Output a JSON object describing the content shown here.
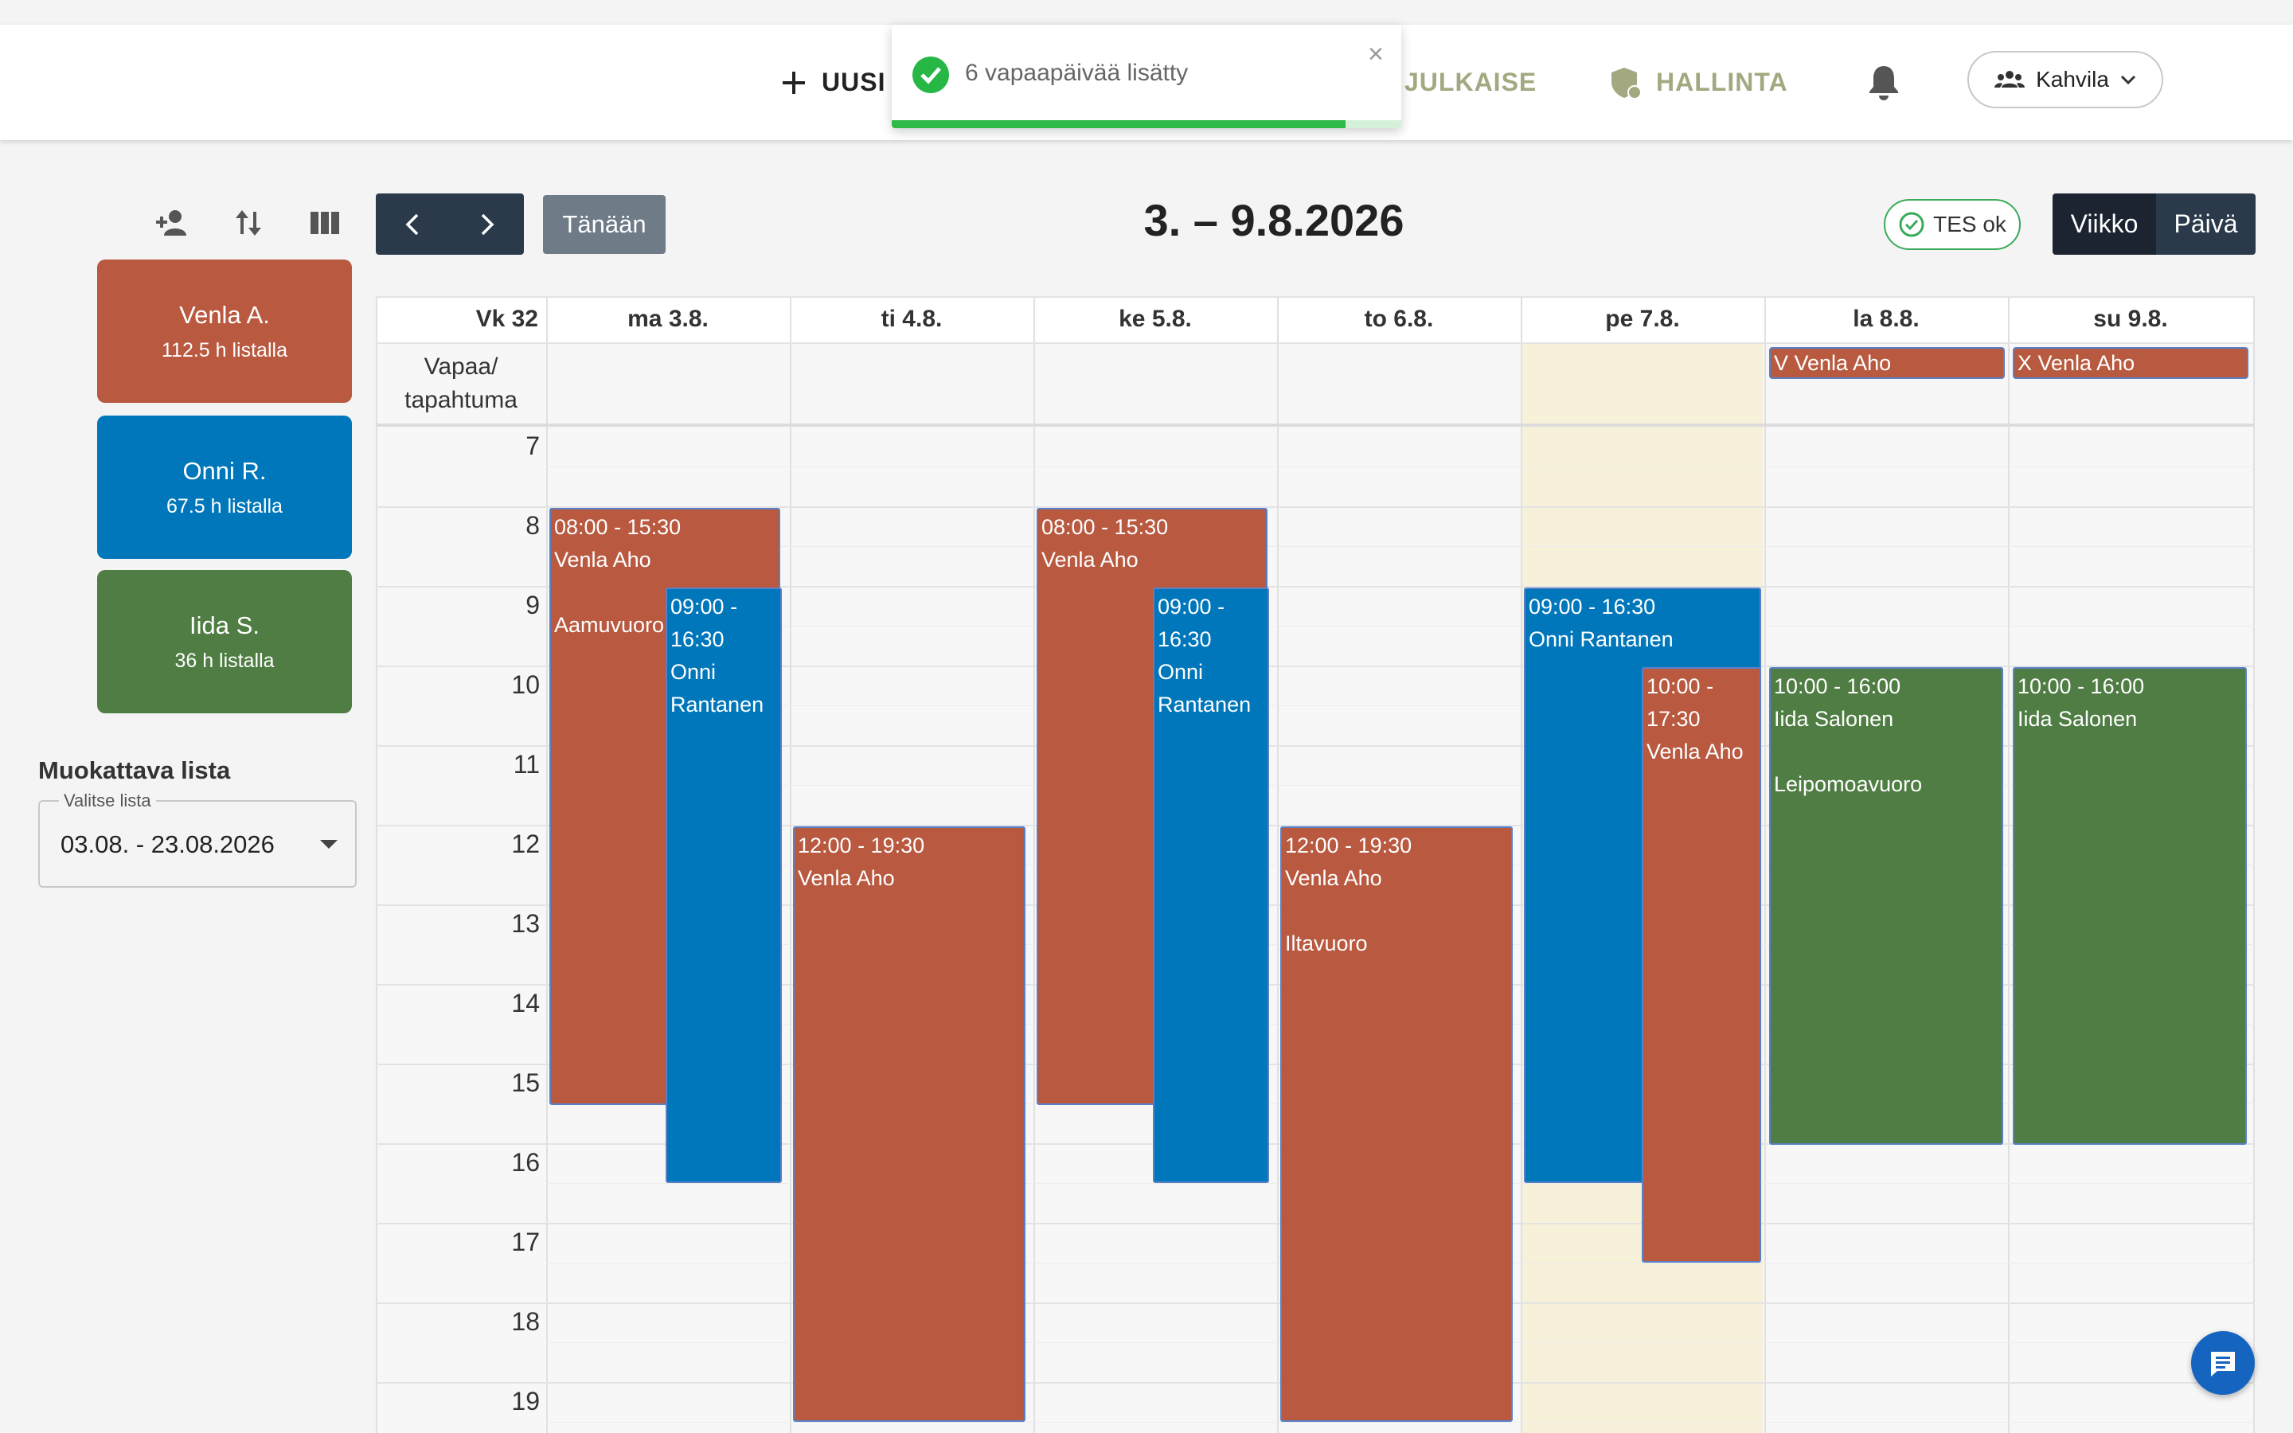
{
  "header": {
    "nav": [
      {
        "label": "UUSI",
        "icon": "plus-icon"
      },
      {
        "label": "JULKAISE"
      },
      {
        "label": "HALLINTA",
        "icon": "shield-icon"
      }
    ],
    "company": "Kahvila"
  },
  "toast": {
    "message": "6 vapaapäivää lisätty",
    "close": "×"
  },
  "employees": [
    {
      "name": "Venla A.",
      "hours": "112.5 h listalla",
      "color": "#b85940"
    },
    {
      "name": "Onni R.",
      "hours": "67.5 h listalla",
      "color": "#0077bb"
    },
    {
      "name": "Iida S.",
      "hours": "36 h listalla",
      "color": "#4f7d43"
    }
  ],
  "list": {
    "title": "Muokattava lista",
    "legend": "Valitse lista",
    "value": "03.08. - 23.08.2026"
  },
  "toolbar": {
    "today": "Tänään",
    "week_title": "3. – 9.8.2026",
    "tes": "TES ok",
    "view_week": "Viikko",
    "view_day": "Päivä"
  },
  "calendar": {
    "week_label": "Vk 32",
    "days": [
      "ma 3.8.",
      "ti 4.8.",
      "ke 5.8.",
      "to 6.8.",
      "pe 7.8.",
      "la 8.8.",
      "su 9.8."
    ],
    "allday_label_1": "Vapaa/",
    "allday_label_2": "tapahtuma",
    "hours": [
      "7",
      "8",
      "9",
      "10",
      "11",
      "12",
      "13",
      "14",
      "15",
      "16",
      "17",
      "18",
      "19"
    ],
    "allday_events": [
      {
        "text": "V Venla Aho",
        "day": "la 8.8."
      },
      {
        "text": "X Venla Aho",
        "day": "su 9.8."
      }
    ],
    "shifts": [
      {
        "time": "08:00 - 15:30",
        "name": "Venla Aho",
        "note": "Aamuvuoro"
      },
      {
        "time_a": "09:00 -",
        "time_b": "16:30",
        "name_a": "Onni",
        "name_b": "Rantanen"
      },
      {
        "time": "12:00 - 19:30",
        "name": "Venla Aho"
      },
      {
        "time": "08:00 - 15:30",
        "name": "Venla Aho"
      },
      {
        "time_a": "09:00 -",
        "time_b": "16:30",
        "name_a": "Onni",
        "name_b": "Rantanen"
      },
      {
        "time": "12:00 - 19:30",
        "name": "Venla Aho",
        "note": "Iltavuoro"
      },
      {
        "time": "09:00 - 16:30",
        "name": "Onni Rantanen"
      },
      {
        "time_a": "10:00 -",
        "time_b": "17:30",
        "name": "Venla Aho"
      },
      {
        "time": "10:00 - 16:00",
        "name": "Iida Salonen",
        "note": "Leipomoavuoro"
      },
      {
        "time": "10:00 - 16:00",
        "name": "Iida Salonen"
      }
    ]
  }
}
